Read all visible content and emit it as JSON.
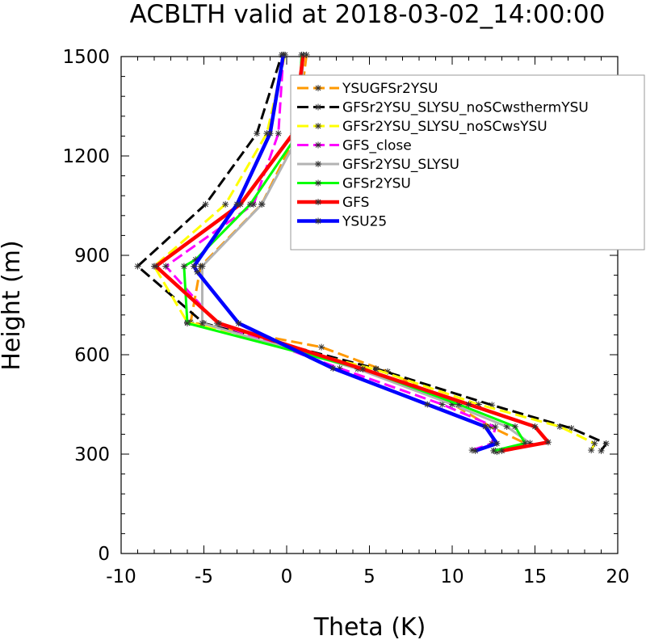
{
  "chart_data": {
    "type": "line",
    "title": "ACBLTH valid at 2018-03-02_14:00:00",
    "xlabel": "Theta (K)",
    "ylabel": "Height (m)",
    "xlim": [
      -10,
      20
    ],
    "ylim": [
      0,
      1500
    ],
    "xticks": [
      -10,
      -5,
      0,
      5,
      10,
      15,
      20
    ],
    "yticks": [
      0,
      300,
      600,
      900,
      1200,
      1500
    ],
    "xtick_labels": [
      "-10",
      "-5",
      "0",
      "5",
      "10",
      "15",
      "20"
    ],
    "ytick_labels": [
      "0",
      "300",
      "600",
      "900",
      "1200",
      "1500"
    ],
    "grid": false,
    "legend_position": "top-right",
    "series": [
      {
        "name": "YSUGFSr2YSU",
        "color": "#ff9900",
        "dash": "dash",
        "width": 3,
        "x": [
          12.7,
          14.4,
          12.3,
          10,
          6.1,
          2.1,
          -5.8,
          -5.2,
          -1.5,
          0.6,
          1.2
        ],
        "y": [
          307,
          333,
          383,
          452,
          549,
          623,
          698,
          867,
          1055,
          1268,
          1505
        ]
      },
      {
        "name": "GFSr2YSU_SLYSU_noSCwsthermYSU",
        "color": "#000000",
        "dash": "dash",
        "width": 3,
        "x": [
          19.0,
          19.3,
          17.2,
          12.4,
          5.4,
          -5.0,
          -9.0,
          -4.9,
          -1.8,
          -0.3
        ],
        "y": [
          310,
          332,
          378,
          448,
          558,
          695,
          867,
          1054,
          1268,
          1505
        ]
      },
      {
        "name": "GFSr2YSU_SLYSU_noSCwsYSU",
        "color": "#ffff00",
        "dash": "dash",
        "width": 3,
        "x": [
          18.4,
          18.6,
          16.5,
          11.6,
          5.4,
          -6.0,
          -8.0,
          -3.7,
          -1.2,
          -0.1
        ],
        "y": [
          312,
          332,
          383,
          450,
          555,
          698,
          867,
          1054,
          1268,
          1505
        ]
      },
      {
        "name": "GFS_close",
        "color": "#ff00ff",
        "dash": "dash",
        "width": 3,
        "x": [
          11.2,
          12.4,
          12.6,
          9.4,
          3.2,
          -4.2,
          -7.3,
          -2.0,
          -0.5,
          -0.2
        ],
        "y": [
          312,
          332,
          382,
          450,
          559,
          695,
          867,
          1054,
          1268,
          1505
        ]
      },
      {
        "name": "GFSr2YSU_SLYSU",
        "color": "#b3b3b3",
        "dash": "solid",
        "width": 3,
        "x": [
          12.6,
          14.7,
          13.3,
          10,
          4.3,
          -5.1,
          -5.1,
          -1.5,
          0.8,
          1.0
        ],
        "y": [
          310,
          333,
          383,
          450,
          557,
          695,
          867,
          1054,
          1268,
          1505
        ]
      },
      {
        "name": "GFSr2YSU",
        "color": "#00ff00",
        "dash": "solid",
        "width": 3,
        "x": [
          12.5,
          14.4,
          13.8,
          10.4,
          4.6,
          -6.0,
          -6.2,
          -5.5,
          -2.2,
          0.7,
          0.9
        ],
        "y": [
          310,
          333,
          383,
          450,
          557,
          695,
          867,
          887,
          1054,
          1268,
          1505
        ]
      },
      {
        "name": "GFS",
        "color": "#ff0000",
        "dash": "solid",
        "width": 4.5,
        "x": [
          13.0,
          15.8,
          15.0,
          11.0,
          4.6,
          -4.1,
          -7.9,
          -2.8,
          0.4,
          1.0
        ],
        "y": [
          310,
          336,
          383,
          450,
          557,
          695,
          867,
          1054,
          1268,
          1505
        ]
      },
      {
        "name": "YSU25",
        "color": "#0000ff",
        "dash": "solid",
        "width": 4.5,
        "x": [
          11.4,
          12.7,
          12.0,
          8.5,
          2.8,
          -2.9,
          -5.4,
          -5.6,
          -3.0,
          -1.0,
          -0.2
        ],
        "y": [
          310,
          332,
          383,
          450,
          559,
          695,
          850,
          867,
          1054,
          1268,
          1505
        ]
      }
    ]
  }
}
